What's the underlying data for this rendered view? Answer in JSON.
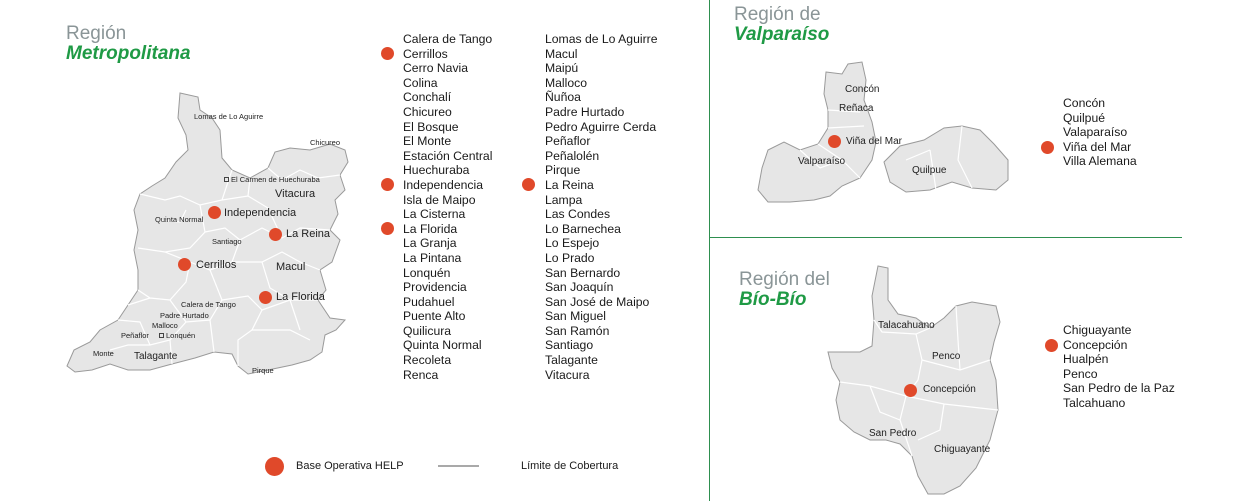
{
  "colors": {
    "accent_green": "#1f9a45",
    "base_marker": "#e0492a",
    "region_gray": "#8a9597",
    "map_fill": "#e6e6e6"
  },
  "metropolitana": {
    "title_prefix": "Región",
    "title_name": "Metropolitana",
    "map_labels": [
      "Lomas de Lo Aguirre",
      "Chicureo",
      "El Carmen de Huechuraba",
      "Vitacura",
      "Quinta Normal",
      "Independencia",
      "Santiago",
      "La Reina",
      "Macul",
      "Cerrillos",
      "La Florida",
      "Calera de Tango",
      "Padre Hurtado",
      "Malloco",
      "Peñaflor",
      "Lonquén",
      "Monte",
      "Talagante",
      "Pirque"
    ],
    "col1": [
      "Calera de Tango",
      "Cerrillos",
      "Cerro Navia",
      "Colina",
      "Conchalí",
      "Chicureo",
      "El Bosque",
      "El Monte",
      "Estación Central",
      "Huechuraba",
      "Independencia",
      "Isla de Maipo",
      "La Cisterna",
      "La Florida",
      "La Granja",
      "La Pintana",
      "Lonquén",
      "Providencia",
      "Pudahuel",
      "Puente Alto",
      "Quilicura",
      "Quinta Normal",
      "Recoleta",
      "Renca"
    ],
    "col2": [
      "Lomas de Lo Aguirre",
      "Macul",
      "Maipú",
      "Malloco",
      "Ñuñoa",
      "Padre Hurtado",
      "Pedro Aguirre Cerda",
      "Peñaflor",
      "Peñalolén",
      "Pirque",
      "La Reina",
      "Lampa",
      "Las Condes",
      "Lo Barnechea",
      "Lo Espejo",
      "Lo Prado",
      "San Bernardo",
      "San Joaquín",
      "San José de Maipo",
      "San Miguel",
      "San Ramón",
      "Santiago",
      "Talagante",
      "Vitacura"
    ]
  },
  "valparaiso": {
    "title_prefix": "Región de",
    "title_name": "Valparaíso",
    "map_labels": [
      "Concón",
      "Reñaca",
      "Viña del Mar",
      "Valparaíso",
      "Quilpue"
    ],
    "list": [
      "Concón",
      "Quilpué",
      "Valaparaíso",
      "Viña del Mar",
      "Villa Alemana"
    ]
  },
  "biobio": {
    "title_prefix": "Región del",
    "title_name": "Bío-Bío",
    "map_labels": [
      "Talacahuano",
      "Penco",
      "Concepción",
      "San Pedro",
      "Chiguayante"
    ],
    "list": [
      "Chiguayante",
      "Concepción",
      "Hualpén",
      "Penco",
      "San Pedro de la Paz",
      "Talcahuano"
    ]
  },
  "legend": {
    "base_label": "Base Operativa HELP",
    "limit_label": "Límite de Cobertura"
  }
}
